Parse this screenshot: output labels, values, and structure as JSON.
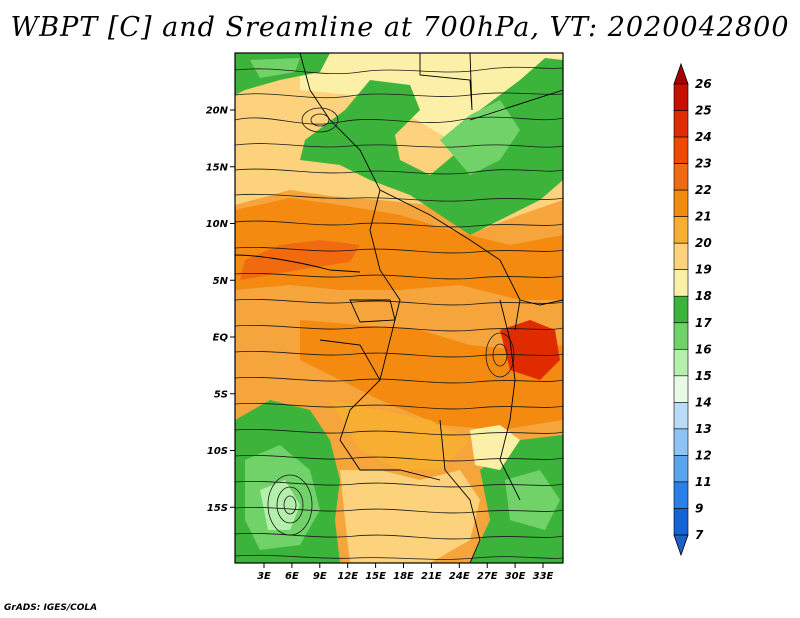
{
  "title": "WBPT [C] and Sreamline at 700hPa, VT: 2020042800",
  "credit": "GrADS: IGES/COLA",
  "map": {
    "variable": "WBPT",
    "units": "C",
    "level": "700hPa",
    "valid_time": "2020042800",
    "overlay": "Streamline",
    "lat_labels": [
      "20N",
      "15N",
      "10N",
      "5N",
      "EQ",
      "5S",
      "10S",
      "15S"
    ],
    "lat_values": [
      20,
      15,
      10,
      5,
      0,
      -5,
      -10,
      -15
    ],
    "lon_labels": [
      "3E",
      "6E",
      "9E",
      "12E",
      "15E",
      "18E",
      "21E",
      "24E",
      "27E",
      "30E",
      "33E"
    ],
    "lon_values": [
      3,
      6,
      9,
      12,
      15,
      18,
      21,
      24,
      27,
      30,
      33
    ]
  },
  "colorbar": {
    "labels": [
      "26",
      "25",
      "24",
      "23",
      "22",
      "21",
      "20",
      "19",
      "18",
      "17",
      "16",
      "15",
      "14",
      "13",
      "12",
      "11",
      "9",
      "7"
    ],
    "colors": [
      "#a80000",
      "#c81000",
      "#e02a00",
      "#f04a00",
      "#f26a10",
      "#f48a10",
      "#f8ae30",
      "#fcd27c",
      "#fcf0a8",
      "#3cb43c",
      "#70d268",
      "#b4f0ac",
      "#e6fae6",
      "#b8dcf8",
      "#8cc4f4",
      "#5aa4ee",
      "#2a80ea",
      "#1464d8",
      "#1f5fc8"
    ]
  }
}
